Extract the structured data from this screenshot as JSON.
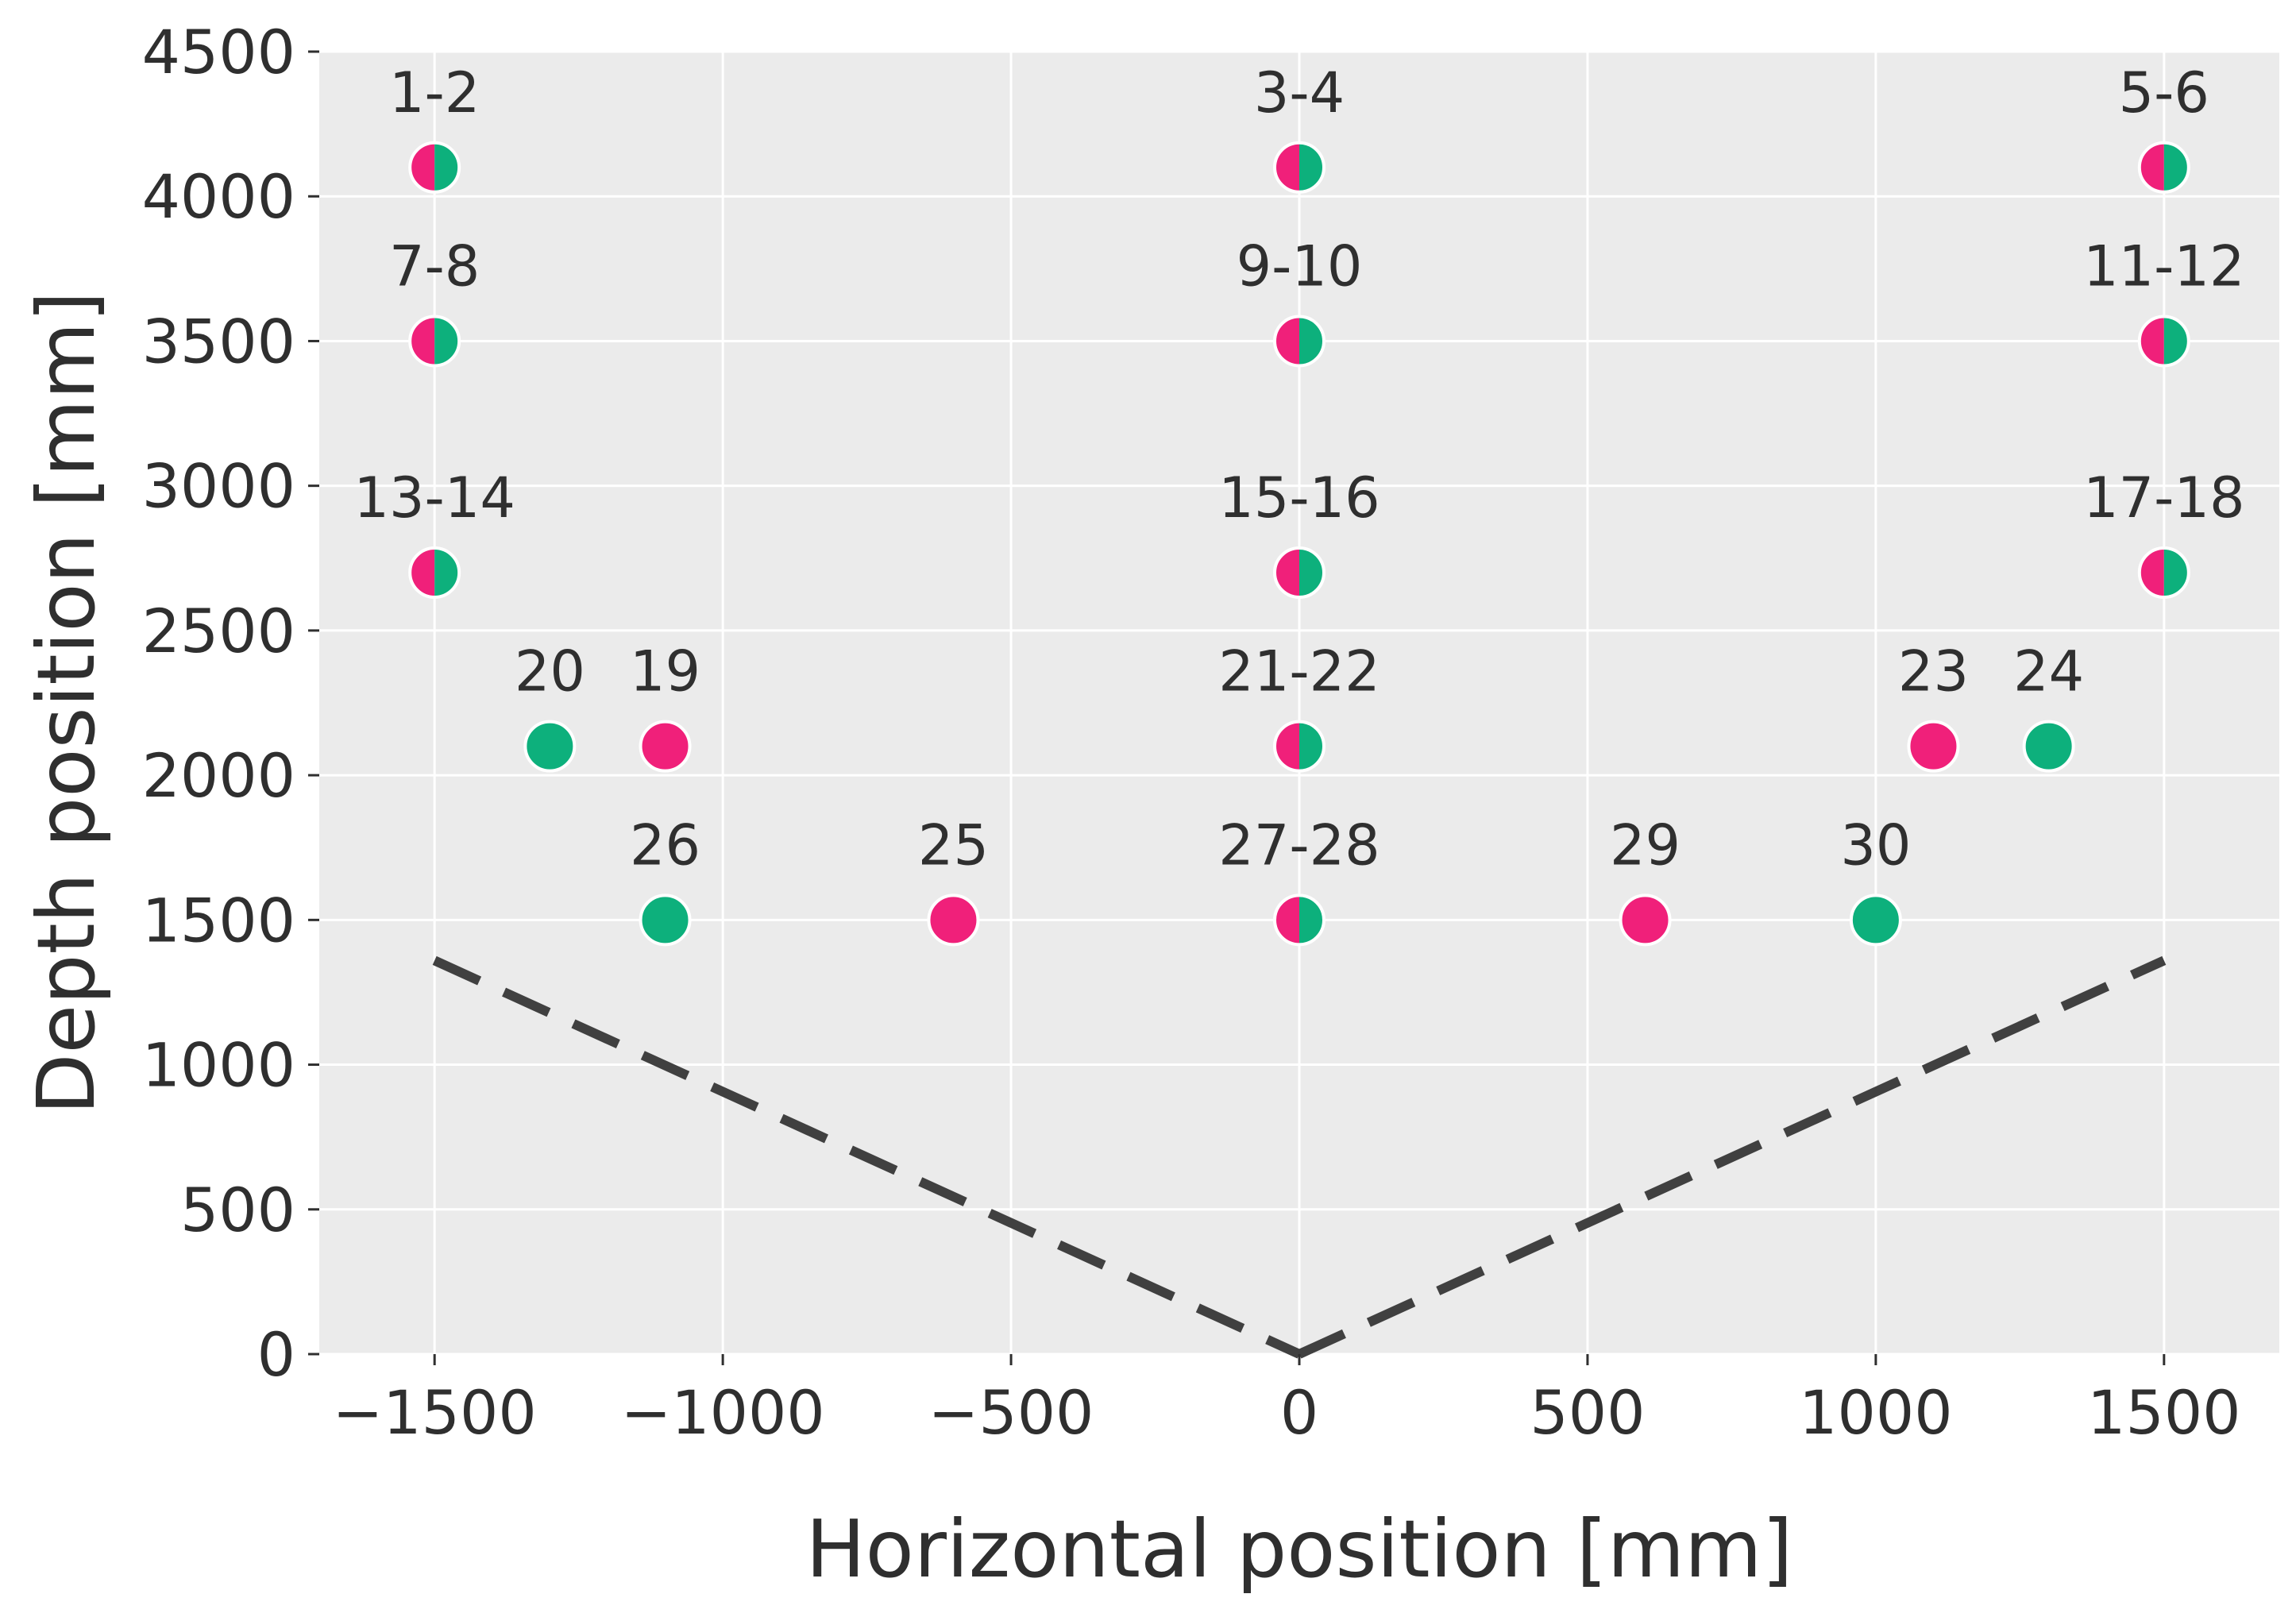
{
  "chart_data": {
    "type": "scatter",
    "title": "",
    "xlabel": "Horizontal position [mm]",
    "ylabel": "Depth position [mm]",
    "xlim": [
      -1700,
      1700
    ],
    "ylim": [
      0,
      4500
    ],
    "xticks": [
      {
        "value": -1500,
        "label": "−1500"
      },
      {
        "value": -1000,
        "label": "−1000"
      },
      {
        "value": -500,
        "label": "−500"
      },
      {
        "value": 0,
        "label": "0"
      },
      {
        "value": 500,
        "label": "500"
      },
      {
        "value": 1000,
        "label": "1000"
      },
      {
        "value": 1500,
        "label": "1500"
      }
    ],
    "yticks": [
      {
        "value": 0,
        "label": "0"
      },
      {
        "value": 500,
        "label": "500"
      },
      {
        "value": 1000,
        "label": "1000"
      },
      {
        "value": 1500,
        "label": "1500"
      },
      {
        "value": 2000,
        "label": "2000"
      },
      {
        "value": 2500,
        "label": "2500"
      },
      {
        "value": 3000,
        "label": "3000"
      },
      {
        "value": 3500,
        "label": "3500"
      },
      {
        "value": 4000,
        "label": "4000"
      },
      {
        "value": 4500,
        "label": "4500"
      }
    ],
    "grid": true,
    "colors": {
      "magenta": "#f0207a",
      "green": "#0db07c",
      "background": "#ebebeb",
      "fov_line": "#404040"
    },
    "points": [
      {
        "x": -1500,
        "y": 4100,
        "label": "1-2",
        "fill": "split"
      },
      {
        "x": 0,
        "y": 4100,
        "label": "3-4",
        "fill": "split"
      },
      {
        "x": 1500,
        "y": 4100,
        "label": "5-6",
        "fill": "split"
      },
      {
        "x": -1500,
        "y": 3500,
        "label": "7-8",
        "fill": "split"
      },
      {
        "x": 0,
        "y": 3500,
        "label": "9-10",
        "fill": "split"
      },
      {
        "x": 1500,
        "y": 3500,
        "label": "11-12",
        "fill": "split"
      },
      {
        "x": -1500,
        "y": 2700,
        "label": "13-14",
        "fill": "split"
      },
      {
        "x": 0,
        "y": 2700,
        "label": "15-16",
        "fill": "split"
      },
      {
        "x": 1500,
        "y": 2700,
        "label": "17-18",
        "fill": "split"
      },
      {
        "x": -1100,
        "y": 2100,
        "label": "19",
        "fill": "magenta"
      },
      {
        "x": -1300,
        "y": 2100,
        "label": "20",
        "fill": "green"
      },
      {
        "x": 0,
        "y": 2100,
        "label": "21-22",
        "fill": "split"
      },
      {
        "x": 1100,
        "y": 2100,
        "label": "23",
        "fill": "magenta"
      },
      {
        "x": 1300,
        "y": 2100,
        "label": "24",
        "fill": "green"
      },
      {
        "x": -600,
        "y": 1500,
        "label": "25",
        "fill": "magenta"
      },
      {
        "x": -1100,
        "y": 1500,
        "label": "26",
        "fill": "green"
      },
      {
        "x": 0,
        "y": 1500,
        "label": "27-28",
        "fill": "split"
      },
      {
        "x": 600,
        "y": 1500,
        "label": "29",
        "fill": "magenta"
      },
      {
        "x": 1000,
        "y": 1500,
        "label": "30",
        "fill": "green"
      }
    ],
    "field_of_view": {
      "style": "dashed",
      "left": [
        {
          "x": -1500,
          "y": 1360
        },
        {
          "x": 0,
          "y": 0
        }
      ],
      "right": [
        {
          "x": 0,
          "y": 0
        },
        {
          "x": 1500,
          "y": 1360
        }
      ]
    }
  }
}
